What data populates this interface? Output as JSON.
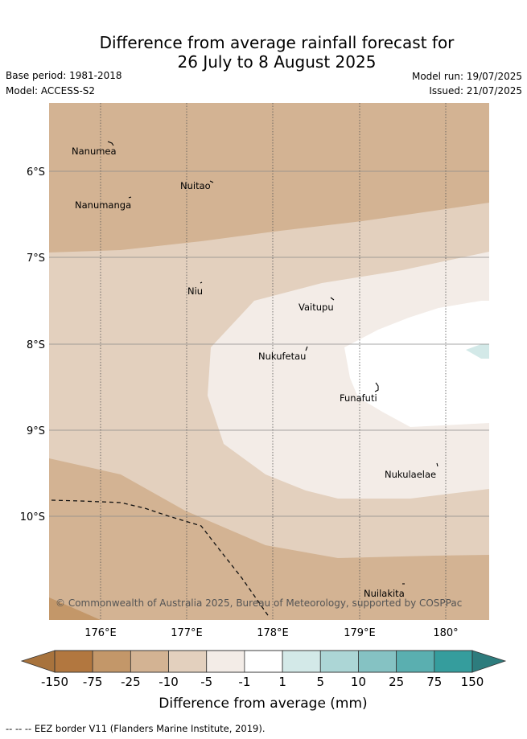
{
  "header": {
    "title_line1": "Difference from average rainfall forecast for",
    "title_line2": "26 July to 8 August 2025",
    "base_period": "Base period: 1981-2018",
    "model": "Model: ACCESS-S2",
    "model_run": "Model run: 19/07/2025",
    "issued": "Issued: 21/07/2025"
  },
  "map": {
    "latitude_labels": [
      "6°S",
      "7°S",
      "8°S",
      "9°S",
      "10°S"
    ],
    "longitude_labels": [
      "176°E",
      "177°E",
      "178°E",
      "179°E",
      "180°"
    ],
    "places": [
      "Nanumea",
      "Nuitao",
      "Nanumanga",
      "Niu",
      "Vaitupu",
      "Nukufetau",
      "Funafuti",
      "Nukulaelae",
      "Nuilakita"
    ],
    "credit": "© Commonwealth of Australia 2025, Bureau of Meteorology, supported by COSPPac"
  },
  "colorbar": {
    "ticks": [
      "-150",
      "-75",
      "-25",
      "-10",
      "-5",
      "-1",
      "1",
      "5",
      "10",
      "25",
      "75",
      "150"
    ],
    "colors": [
      "#a8733d",
      "#b2773f",
      "#c39769",
      "#d3b393",
      "#e3d0be",
      "#f3ece7",
      "#ffffff",
      "#d3e9e8",
      "#acd6d6",
      "#85c2c3",
      "#5aafb0",
      "#359d9d",
      "#2d7c7d"
    ],
    "label": "Difference from average (mm)"
  },
  "footnote": "-- -- -- EEZ border V11 (Flanders Marine Institute, 2019)."
}
